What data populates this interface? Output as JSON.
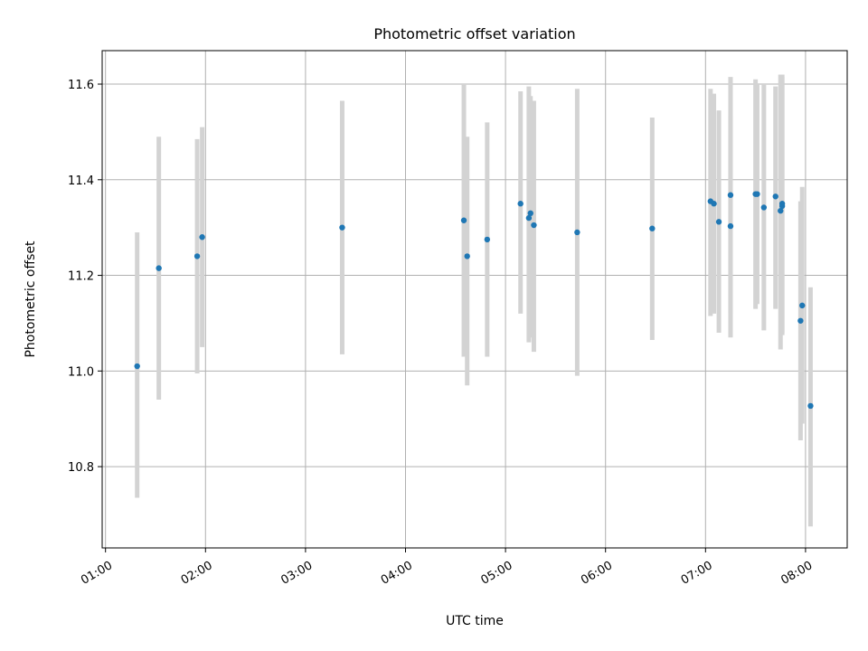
{
  "chart_data": {
    "type": "scatter",
    "title": "Photometric offset variation",
    "xlabel": "UTC time",
    "ylabel": "Photometric offset",
    "x_unit": "time HH:MM (UTC)",
    "xlim": [
      "00:58",
      "08:25"
    ],
    "ylim": [
      10.63,
      11.67
    ],
    "x_ticks": [
      "01:00",
      "02:00",
      "03:00",
      "04:00",
      "05:00",
      "06:00",
      "07:00",
      "08:00"
    ],
    "y_ticks": [
      "10.8",
      "11.0",
      "11.2",
      "11.4",
      "11.6"
    ],
    "y_tick_values": [
      10.8,
      11.0,
      11.2,
      11.4,
      11.6
    ],
    "grid": true,
    "marker_color": "#1f77b4",
    "errorbar_color": "#d3d3d3",
    "points": [
      {
        "x": "01:19",
        "y": 11.01,
        "y_low": 10.735,
        "y_high": 11.29
      },
      {
        "x": "01:32",
        "y": 11.215,
        "y_low": 10.94,
        "y_high": 11.49
      },
      {
        "x": "01:55",
        "y": 11.24,
        "y_low": 10.995,
        "y_high": 11.485
      },
      {
        "x": "01:58",
        "y": 11.28,
        "y_low": 11.05,
        "y_high": 11.51
      },
      {
        "x": "03:22",
        "y": 11.3,
        "y_low": 11.035,
        "y_high": 11.565
      },
      {
        "x": "04:35",
        "y": 11.315,
        "y_low": 11.03,
        "y_high": 11.6
      },
      {
        "x": "04:37",
        "y": 11.24,
        "y_low": 10.97,
        "y_high": 11.49
      },
      {
        "x": "04:49",
        "y": 11.275,
        "y_low": 11.03,
        "y_high": 11.52
      },
      {
        "x": "05:09",
        "y": 11.35,
        "y_low": 11.12,
        "y_high": 11.585
      },
      {
        "x": "05:14",
        "y": 11.32,
        "y_low": 11.06,
        "y_high": 11.595
      },
      {
        "x": "05:15",
        "y": 11.33,
        "y_low": 11.07,
        "y_high": 11.575
      },
      {
        "x": "05:17",
        "y": 11.305,
        "y_low": 11.04,
        "y_high": 11.565
      },
      {
        "x": "05:43",
        "y": 11.29,
        "y_low": 10.99,
        "y_high": 11.59
      },
      {
        "x": "06:28",
        "y": 11.298,
        "y_low": 11.065,
        "y_high": 11.53
      },
      {
        "x": "07:03",
        "y": 11.355,
        "y_low": 11.115,
        "y_high": 11.59
      },
      {
        "x": "07:05",
        "y": 11.35,
        "y_low": 11.12,
        "y_high": 11.58
      },
      {
        "x": "07:08",
        "y": 11.312,
        "y_low": 11.08,
        "y_high": 11.545
      },
      {
        "x": "07:15",
        "y": 11.303,
        "y_low": 11.07,
        "y_high": 11.535
      },
      {
        "x": "07:15",
        "y": 11.368,
        "y_low": 11.12,
        "y_high": 11.615
      },
      {
        "x": "07:30",
        "y": 11.37,
        "y_low": 11.13,
        "y_high": 11.61
      },
      {
        "x": "07:31",
        "y": 11.37,
        "y_low": 11.14,
        "y_high": 11.6
      },
      {
        "x": "07:35",
        "y": 11.342,
        "y_low": 11.085,
        "y_high": 11.6
      },
      {
        "x": "07:42",
        "y": 11.365,
        "y_low": 11.13,
        "y_high": 11.595
      },
      {
        "x": "07:45",
        "y": 11.335,
        "y_low": 11.045,
        "y_high": 11.62
      },
      {
        "x": "07:46",
        "y": 11.345,
        "y_low": 11.075,
        "y_high": 11.615
      },
      {
        "x": "07:46",
        "y": 11.35,
        "y_low": 11.08,
        "y_high": 11.62
      },
      {
        "x": "07:57",
        "y": 11.105,
        "y_low": 10.855,
        "y_high": 11.355
      },
      {
        "x": "07:58",
        "y": 11.137,
        "y_low": 10.89,
        "y_high": 11.385
      },
      {
        "x": "08:03",
        "y": 10.927,
        "y_low": 10.675,
        "y_high": 11.175
      }
    ]
  }
}
